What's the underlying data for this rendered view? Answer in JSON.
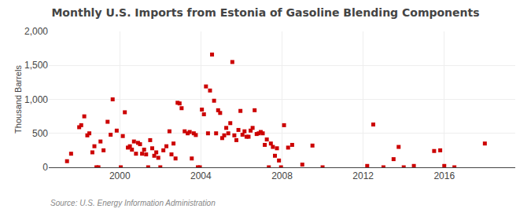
{
  "chart_data": {
    "type": "scatter",
    "title": "Monthly U.S. Imports from Estonia of Gasoline Blending Components",
    "y_label": "Thousand Barrels",
    "annotations": [
      "Source: U.S. Energy Information Administration"
    ],
    "color": "#CC0000",
    "marker": "square",
    "grid": true,
    "xlim": [
      1996.5,
      2019.5
    ],
    "xticks": [
      2000,
      2004,
      2008,
      2012,
      2016
    ],
    "ylim": [
      0,
      2000
    ],
    "yticks": [
      0,
      500,
      {
        "value": 1000,
        "label": "1,000"
      },
      {
        "value": 1500,
        "label": "1,500"
      },
      {
        "value": 2000,
        "label": "2,000"
      }
    ],
    "x": [
      1997.4,
      1997.6,
      1998.0,
      1998.1,
      1998.25,
      1998.4,
      1998.5,
      1998.65,
      1998.75,
      1998.85,
      1998.95,
      1999.05,
      1999.2,
      1999.4,
      1999.55,
      1999.65,
      1999.85,
      2000.05,
      2000.15,
      2000.25,
      2000.4,
      2000.5,
      2000.6,
      2000.7,
      2000.8,
      2000.9,
      2001.0,
      2001.1,
      2001.2,
      2001.3,
      2001.4,
      2001.5,
      2001.6,
      2001.7,
      2001.8,
      2001.9,
      2002.0,
      2002.15,
      2002.3,
      2002.45,
      2002.55,
      2002.65,
      2002.75,
      2002.85,
      2002.95,
      2003.05,
      2003.2,
      2003.35,
      2003.45,
      2003.55,
      2003.65,
      2003.75,
      2003.85,
      2003.95,
      2004.05,
      2004.15,
      2004.25,
      2004.35,
      2004.45,
      2004.55,
      2004.65,
      2004.75,
      2004.85,
      2004.95,
      2005.05,
      2005.15,
      2005.25,
      2005.35,
      2005.45,
      2005.55,
      2005.65,
      2005.75,
      2005.85,
      2005.95,
      2006.05,
      2006.15,
      2006.25,
      2006.35,
      2006.45,
      2006.55,
      2006.65,
      2006.75,
      2006.85,
      2006.95,
      2007.05,
      2007.15,
      2007.25,
      2007.35,
      2007.45,
      2007.55,
      2007.65,
      2007.75,
      2007.85,
      2007.95,
      2008.1,
      2008.3,
      2008.5,
      2009.0,
      2009.5,
      2010.0,
      2012.2,
      2012.5,
      2013.0,
      2013.5,
      2013.75,
      2014.0,
      2014.5,
      2015.5,
      2015.8,
      2016.0,
      2016.5,
      2018.0
    ],
    "values": [
      90,
      200,
      590,
      620,
      750,
      470,
      500,
      220,
      310,
      0,
      0,
      380,
      250,
      670,
      480,
      1000,
      540,
      0,
      460,
      810,
      290,
      310,
      260,
      380,
      200,
      360,
      340,
      200,
      260,
      190,
      0,
      400,
      280,
      170,
      220,
      140,
      0,
      250,
      310,
      530,
      190,
      350,
      130,
      950,
      940,
      870,
      530,
      500,
      520,
      130,
      500,
      475,
      0,
      0,
      850,
      780,
      1190,
      500,
      1130,
      1660,
      980,
      500,
      840,
      800,
      430,
      470,
      580,
      500,
      650,
      1550,
      470,
      400,
      550,
      830,
      480,
      530,
      450,
      450,
      540,
      580,
      840,
      490,
      500,
      520,
      500,
      330,
      410,
      0,
      350,
      300,
      170,
      280,
      100,
      0,
      620,
      290,
      330,
      40,
      320,
      0,
      20,
      630,
      0,
      120,
      300,
      0,
      20,
      240,
      250,
      20,
      0,
      350
    ]
  }
}
